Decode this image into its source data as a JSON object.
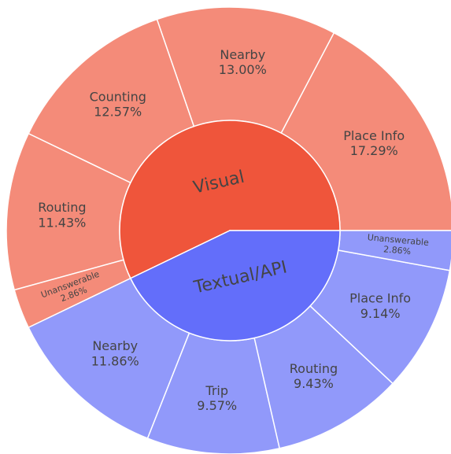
{
  "chart_data": {
    "type": "sunburst",
    "groups": [
      {
        "name": "Visual",
        "color": "#ef553b",
        "outer_color": "#f48b79",
        "categories": [
          "Place Info",
          "Nearby",
          "Counting",
          "Routing",
          "Unanswerable"
        ],
        "values": [
          17.29,
          13.0,
          12.57,
          11.43,
          2.86
        ],
        "value_labels": [
          "17.29%",
          "13.00%",
          "12.57%",
          "11.43%",
          "2.86%"
        ]
      },
      {
        "name": "Textual/API",
        "color": "#636efa",
        "outer_color": "#9199fa",
        "categories": [
          "Nearby",
          "Trip",
          "Routing",
          "Place Info",
          "Unanswerable"
        ],
        "values": [
          11.86,
          9.57,
          9.43,
          9.14,
          2.86
        ],
        "value_labels": [
          "11.86%",
          "9.57%",
          "9.43%",
          "9.14%",
          "2.86%"
        ]
      }
    ]
  }
}
